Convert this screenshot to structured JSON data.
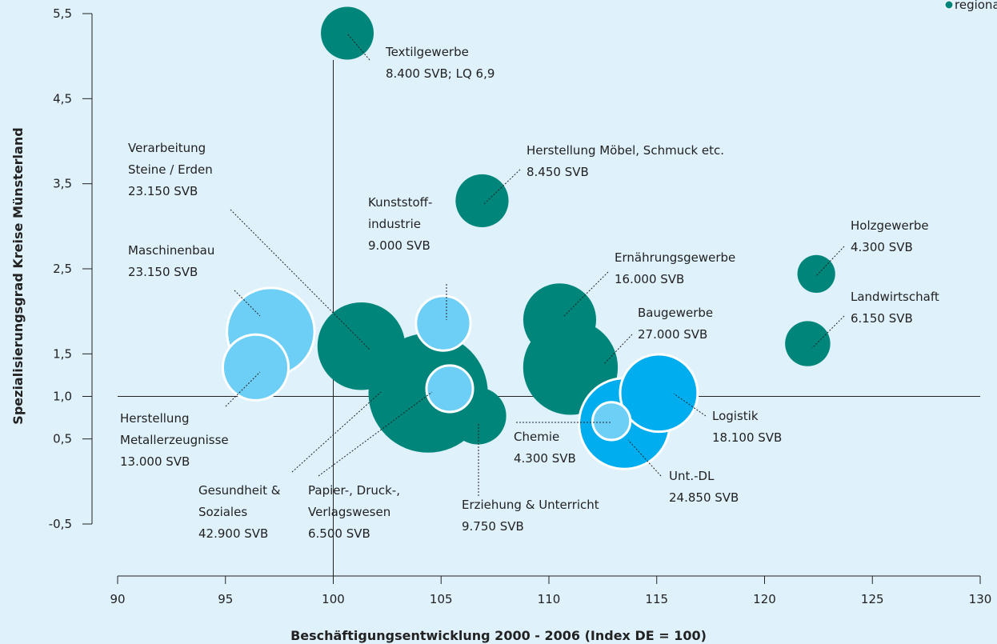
{
  "chart_data": {
    "type": "bubble",
    "xlabel": "Beschäftigungsentwicklung 2000 - 2006 (Index DE = 100)",
    "ylabel": "Spezialisierungsgrad Kreise Münsterland",
    "legend": {
      "label": "regional bedeutsame Branche MSL",
      "color": "#00857a"
    },
    "xlim": [
      90,
      130
    ],
    "xticks": [
      90,
      95,
      100,
      105,
      110,
      115,
      120,
      125,
      130
    ],
    "ylim": [
      -0.5,
      5.5
    ],
    "yticks": [
      {
        "value": -0.5,
        "label": "-0,5"
      },
      {
        "value": 0.5,
        "label": "0,5"
      },
      {
        "value": 1.0,
        "label": "1,0"
      },
      {
        "value": 1.5,
        "label": "1,5"
      },
      {
        "value": 2.5,
        "label": "2,5"
      },
      {
        "value": 3.5,
        "label": "3,5"
      },
      {
        "value": 4.5,
        "label": "4,5"
      },
      {
        "value": 5.5,
        "label": "5,5"
      }
    ],
    "vlines": [
      100
    ],
    "hlines": [
      1.0
    ],
    "points": [
      {
        "label": [
          "Maschinenbau",
          "23.150 SVB"
        ],
        "x": 97.1,
        "y": 1.76,
        "size": 23150,
        "color": "#6dcff6"
      },
      {
        "label": [
          "Herstellung",
          "Metallerzeugnisse",
          "13.000 SVB"
        ],
        "x": 96.4,
        "y": 1.34,
        "size": 13000,
        "color": "#6dcff6"
      },
      {
        "label": [
          "Verarbeitung",
          "Steine / Erden",
          "23.150 SVB"
        ],
        "x": 101.3,
        "y": 1.59,
        "size": 23150,
        "color": "#00857a"
      },
      {
        "label": [
          "Gesundheit &",
          "Soziales",
          "42.900 SVB"
        ],
        "x": 104.4,
        "y": 1.04,
        "size": 42900,
        "color": "#00857a"
      },
      {
        "label": [
          "Kunststoff-",
          "industrie",
          "9.000 SVB"
        ],
        "x": 105.1,
        "y": 1.86,
        "size": 9000,
        "color": "#6dcff6"
      },
      {
        "label": [
          "Erziehung & Unterricht",
          "9.750 SVB"
        ],
        "x": 106.7,
        "y": 0.77,
        "size": 9750,
        "color": "#00857a"
      },
      {
        "label": [
          "Papier-, Druck-,",
          "Verlagswesen",
          "6.500 SVB"
        ],
        "x": 105.4,
        "y": 1.09,
        "size": 6500,
        "color": "#6dcff6"
      },
      {
        "label": [
          "Textilgewerbe",
          "8.400 SVB; LQ 6,9"
        ],
        "x": 100.65,
        "y": 5.27,
        "size": 8400,
        "color": "#00857a"
      },
      {
        "label": [
          "Herstellung Möbel, Schmuck etc.",
          "8.450 SVB"
        ],
        "x": 106.9,
        "y": 3.3,
        "size": 8450,
        "color": "#00857a"
      },
      {
        "label": [
          "Ernährungsgewerbe",
          "16.000 SVB"
        ],
        "x": 110.5,
        "y": 1.9,
        "size": 16000,
        "color": "#00857a"
      },
      {
        "label": [
          "Baugewerbe",
          "27.000 SVB"
        ],
        "x": 111.0,
        "y": 1.34,
        "size": 27000,
        "color": "#00857a"
      },
      {
        "label": [
          "Unt.-DL",
          "24.850 SVB"
        ],
        "x": 113.5,
        "y": 0.68,
        "size": 24850,
        "color": "#00aeef"
      },
      {
        "label": [
          "Logistik",
          "18.100 SVB"
        ],
        "x": 115.1,
        "y": 1.04,
        "size": 18100,
        "color": "#00aeef"
      },
      {
        "label": [
          "Chemie",
          "4.300 SVB"
        ],
        "x": 112.9,
        "y": 0.71,
        "size": 4300,
        "color": "#6dcff6"
      },
      {
        "label": [
          "Holzgewerbe",
          "4.300 SVB"
        ],
        "x": 122.4,
        "y": 2.44,
        "size": 4300,
        "color": "#00857a"
      },
      {
        "label": [
          "Landwirtschaft",
          "6.150 SVB"
        ],
        "x": 122.0,
        "y": 1.62,
        "size": 6150,
        "color": "#00857a"
      }
    ]
  }
}
